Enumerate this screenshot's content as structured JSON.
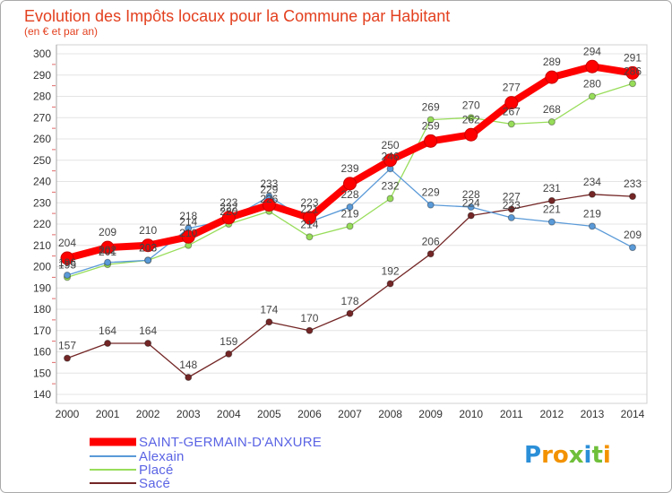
{
  "chart_data": {
    "type": "line",
    "title": "Evolution des Impôts locaux pour la Commune par Habitant",
    "subtitle": "(en € et par an)",
    "x": [
      2000,
      2001,
      2002,
      2003,
      2004,
      2005,
      2006,
      2007,
      2008,
      2009,
      2010,
      2011,
      2012,
      2013,
      2014
    ],
    "ylim": [
      140,
      300
    ],
    "yticks": [
      140,
      150,
      160,
      170,
      180,
      190,
      200,
      210,
      220,
      230,
      240,
      250,
      260,
      270,
      280,
      290,
      300
    ],
    "grid": true,
    "legend_position": "bottom-left",
    "series": [
      {
        "name": "SAINT-GERMAIN-D'ANXURE",
        "color": "#ff0000",
        "values": [
          204,
          209,
          210,
          214,
          223,
          229,
          223,
          239,
          250,
          259,
          262,
          277,
          289,
          294,
          291
        ]
      },
      {
        "name": "Alexain",
        "color": "#5a9ad8",
        "values": [
          196,
          202,
          203,
          218,
          222,
          233,
          221,
          228,
          246,
          229,
          228,
          223,
          221,
          219,
          209
        ]
      },
      {
        "name": "Placé",
        "color": "#98dd5a",
        "values": [
          195,
          201,
          203,
          210,
          220,
          226,
          214,
          219,
          232,
          269,
          270,
          267,
          268,
          280,
          286
        ]
      },
      {
        "name": "Sacé",
        "color": "#742626",
        "values": [
          157,
          164,
          164,
          148,
          159,
          174,
          170,
          178,
          192,
          206,
          224,
          227,
          231,
          234,
          233
        ]
      }
    ]
  },
  "colors": {
    "title": "#e3401f",
    "legend_text": "#5b64e4",
    "data_label": "#444444",
    "axis_label": "#333333"
  },
  "logo": {
    "text": "Proxiti",
    "letter_colors": [
      "#2b8fd8",
      "#f39200",
      "#f39200",
      "#6fbf3a",
      "#2b8fd8",
      "#6fbf3a",
      "#f39200"
    ]
  }
}
